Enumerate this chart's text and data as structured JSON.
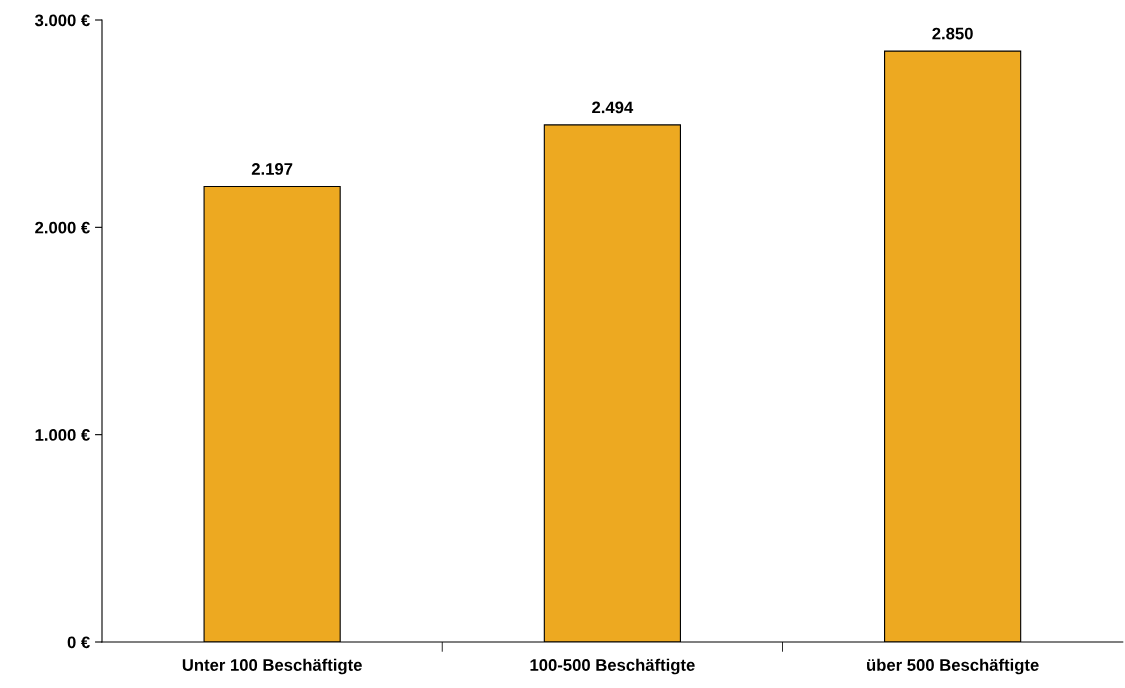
{
  "chart_data": {
    "type": "bar",
    "categories": [
      "Unter 100 Beschäftigte",
      "100-500 Beschäftigte",
      "über 500 Beschäftigte"
    ],
    "values": [
      2197,
      2494,
      2850
    ],
    "value_labels": [
      "2.197",
      "2.494",
      "2.850"
    ],
    "color": "#eda921",
    "ylim": [
      0,
      3000
    ],
    "yticks": [
      {
        "value": 0,
        "label": "0 €"
      },
      {
        "value": 1000,
        "label": "1.000 €"
      },
      {
        "value": 2000,
        "label": "2.000 €"
      },
      {
        "value": 3000,
        "label": "3.000 €"
      }
    ],
    "grid": false
  }
}
